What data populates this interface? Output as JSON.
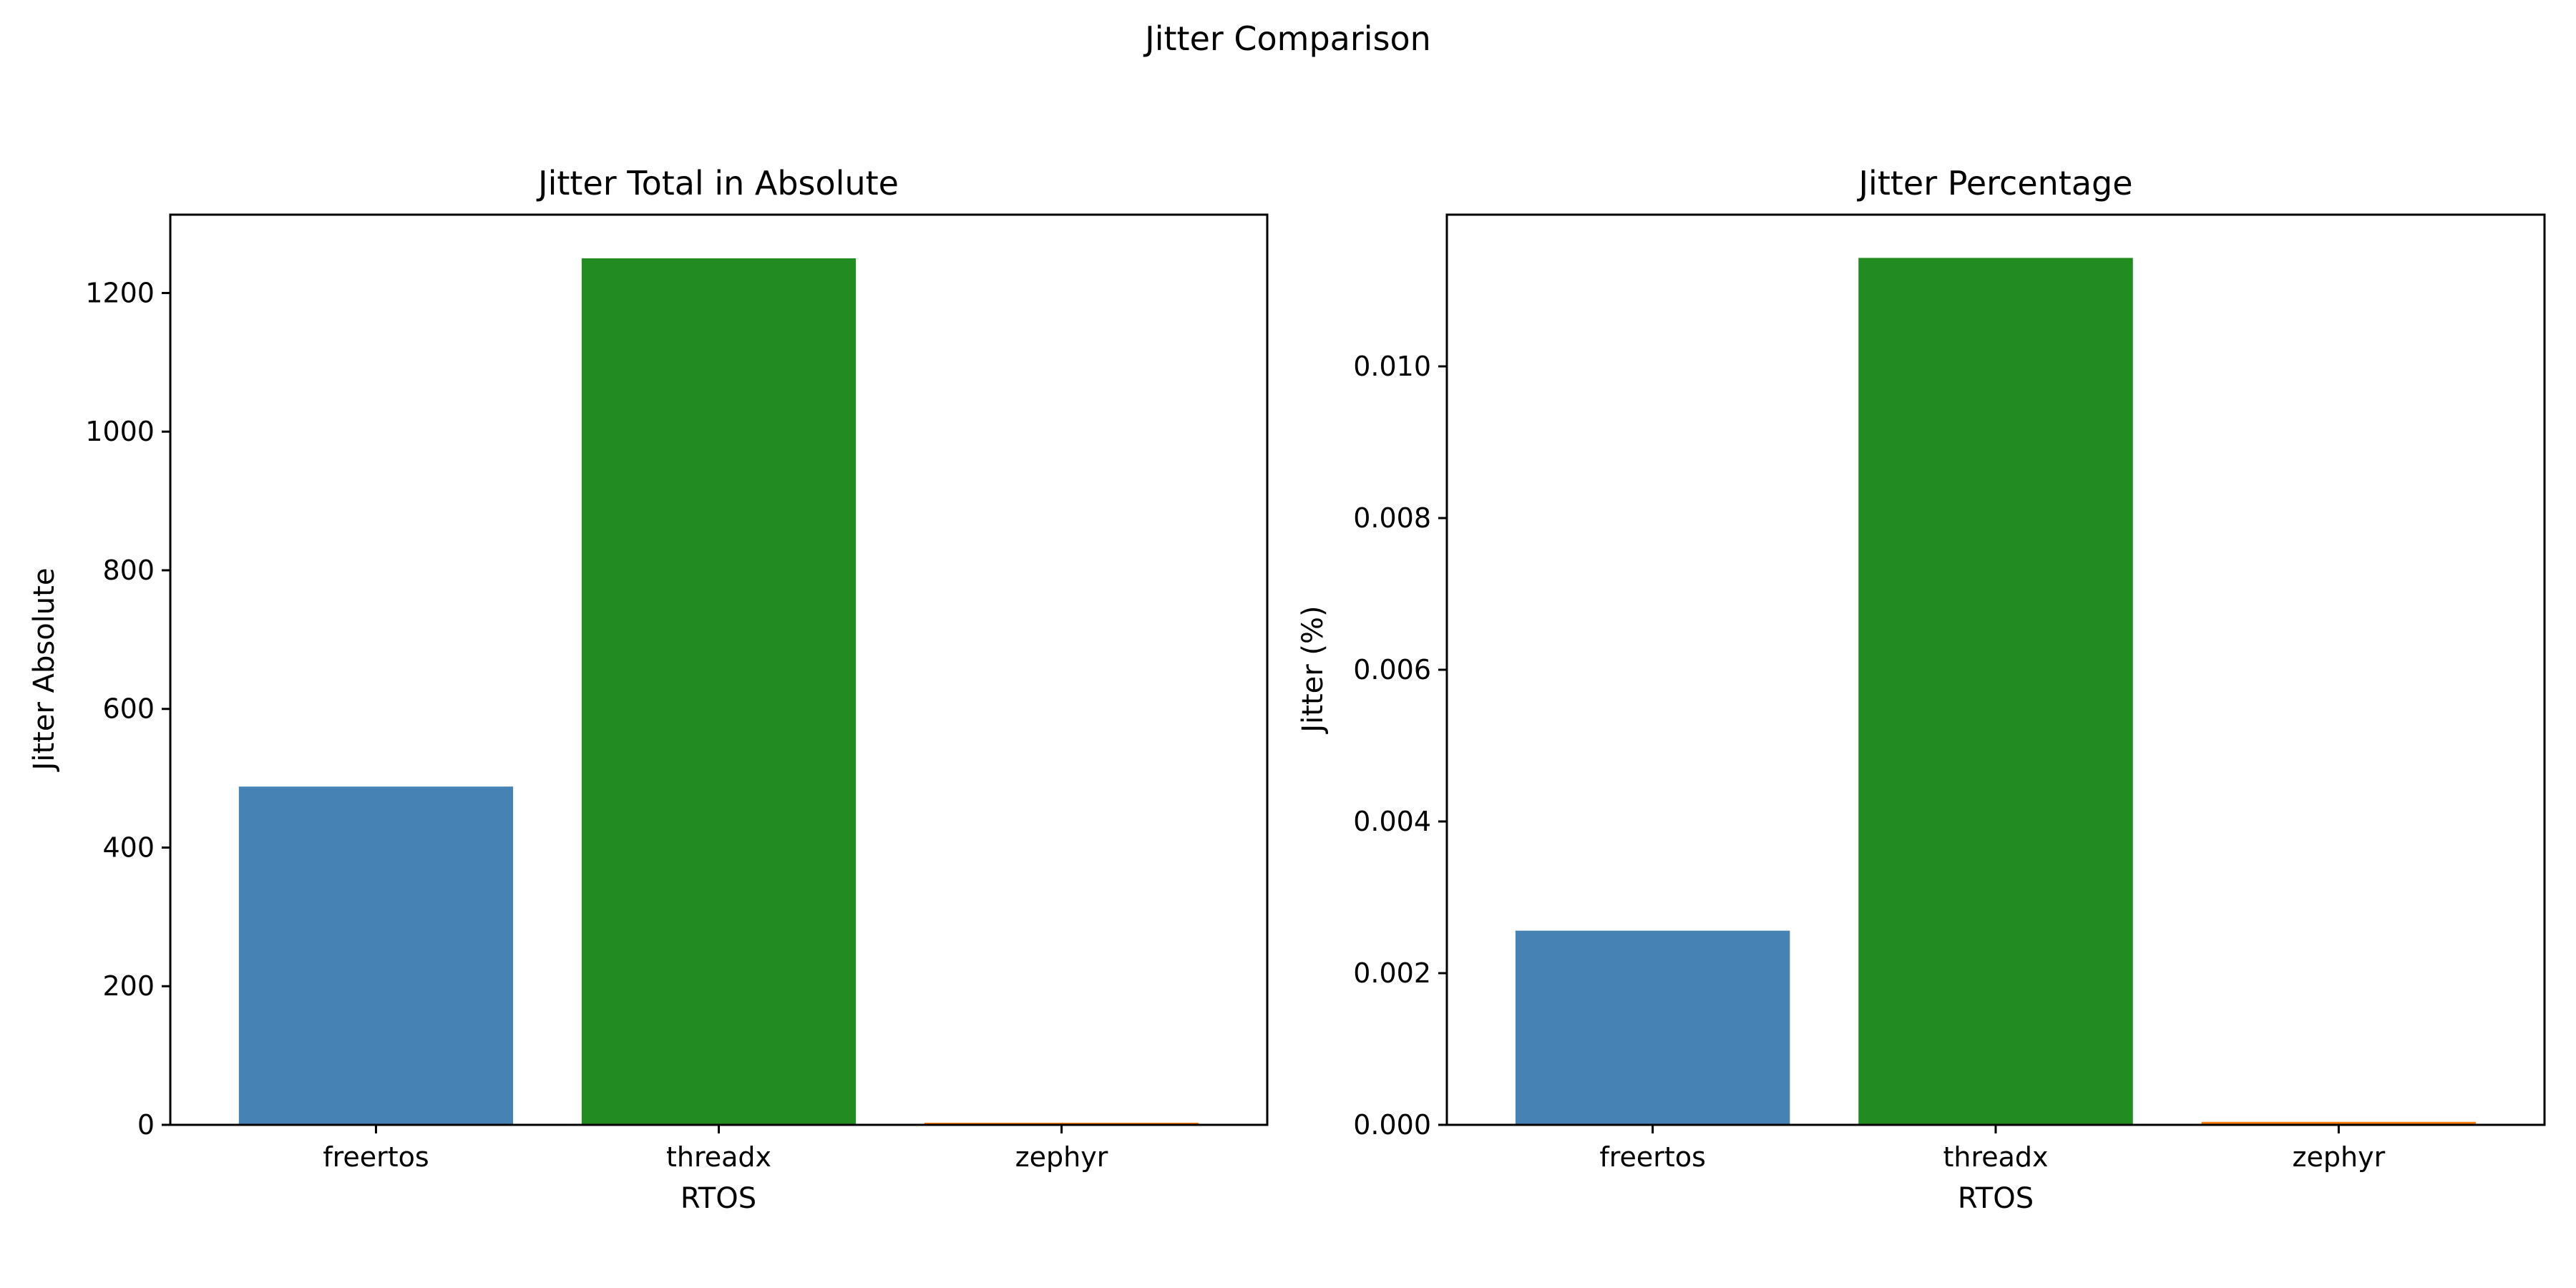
{
  "figure": {
    "title": "Jitter Comparison"
  },
  "chart_data": [
    {
      "type": "bar",
      "title": "Jitter Total in Absolute",
      "xlabel": "RTOS",
      "ylabel": "Jitter Absolute",
      "categories": [
        "freertos",
        "threadx",
        "zephyr"
      ],
      "values": [
        488,
        1250,
        1
      ],
      "colors": [
        "#4682b4",
        "#228b22",
        "#ff7f0e"
      ],
      "ylim": [
        0,
        1313
      ],
      "yticks": [
        0,
        200,
        400,
        600,
        800,
        1000,
        1200
      ],
      "ytick_labels": [
        "0",
        "200",
        "400",
        "600",
        "800",
        "1000",
        "1200"
      ],
      "grid": false
    },
    {
      "type": "bar",
      "title": "Jitter Percentage",
      "xlabel": "RTOS",
      "ylabel": "Jitter (%)",
      "categories": [
        "freertos",
        "threadx",
        "zephyr"
      ],
      "values": [
        0.00256,
        0.01143,
        4e-05
      ],
      "colors": [
        "#4682b4",
        "#228b22",
        "#ff7f0e"
      ],
      "ylim": [
        0,
        0.012
      ],
      "yticks": [
        0,
        0.002,
        0.004,
        0.006,
        0.008,
        0.01
      ],
      "ytick_labels": [
        "0.000",
        "0.002",
        "0.004",
        "0.006",
        "0.008",
        "0.010"
      ],
      "grid": false
    }
  ]
}
